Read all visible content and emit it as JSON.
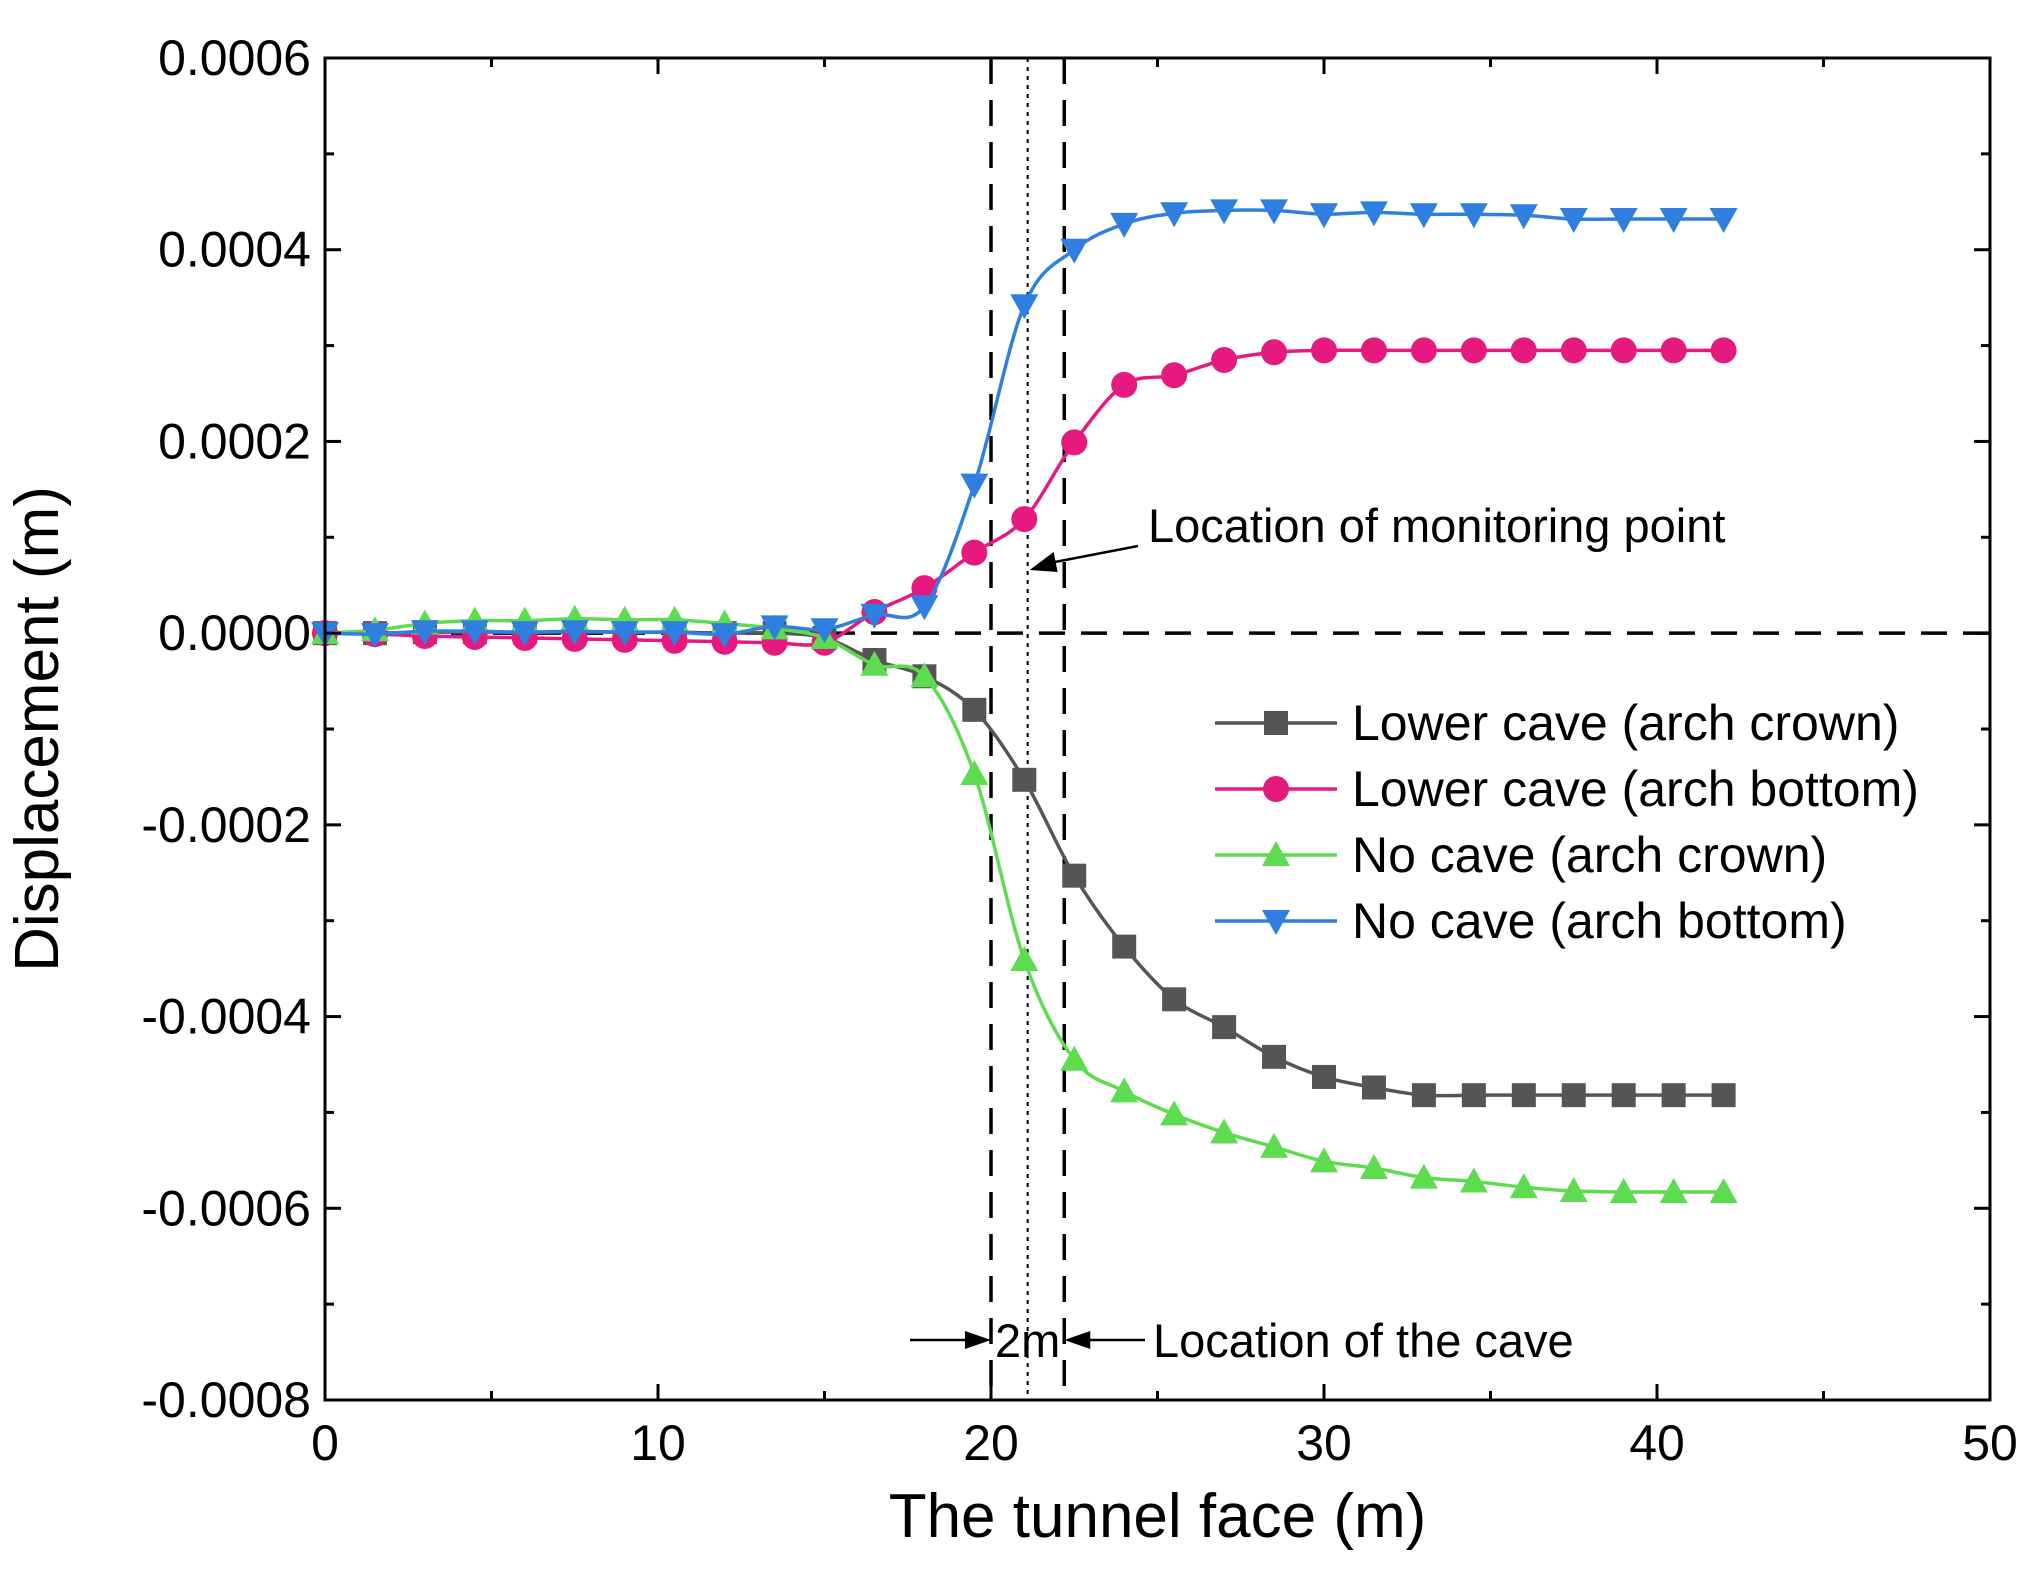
{
  "chart_data": {
    "type": "line",
    "title": "",
    "xlabel": "The tunnel face (m)",
    "ylabel": "Displacement (m)",
    "xlim": [
      0,
      50
    ],
    "ylim": [
      -0.0008,
      0.0006
    ],
    "xticks": [
      0,
      10,
      20,
      30,
      40,
      50
    ],
    "xtick_labels": [
      "0",
      "10",
      "20",
      "30",
      "40",
      "50"
    ],
    "yticks": [
      -0.0008,
      -0.0006,
      -0.0004,
      -0.0002,
      0.0,
      0.0002,
      0.0004,
      0.0006
    ],
    "ytick_labels": [
      "-0.0008",
      "-0.0006",
      "-0.0004",
      "-0.0002",
      "0.0000",
      "0.0002",
      "0.0004",
      "0.0006"
    ],
    "grid": false,
    "legend_position": "center-right",
    "x": [
      0,
      1.5,
      3,
      4.5,
      6,
      7.5,
      9,
      10.5,
      12,
      13.5,
      15,
      16.5,
      18,
      19.5,
      21,
      22.5,
      24,
      25.5,
      27,
      28.5,
      30,
      31.5,
      33,
      34.5,
      36,
      37.5,
      39,
      40.5,
      42
    ],
    "series": [
      {
        "name": "Lower cave (arch crown)",
        "color": "#555555",
        "marker": "square",
        "values": [
          0,
          0,
          1e-06,
          1e-06,
          1e-06,
          1e-06,
          1e-06,
          1e-06,
          0,
          0,
          -5e-06,
          -2.8e-05,
          -4.5e-05,
          -8e-05,
          -0.000153,
          -0.000253,
          -0.000327,
          -0.000382,
          -0.000411,
          -0.000442,
          -0.000463,
          -0.000474,
          -0.000482,
          -0.000482,
          -0.000482,
          -0.000482,
          -0.000482,
          -0.000482,
          -0.000482
        ]
      },
      {
        "name": "Lower cave (arch bottom)",
        "color": "#e6197e",
        "marker": "circle",
        "values": [
          0,
          -1e-06,
          -3e-06,
          -4e-06,
          -5e-06,
          -6e-06,
          -7e-06,
          -8e-06,
          -9e-06,
          -1e-05,
          -1e-05,
          2.2e-05,
          4.7e-05,
          8.4e-05,
          0.000119,
          0.000199,
          0.000259,
          0.000269,
          0.000285,
          0.000293,
          0.000295,
          0.000295,
          0.000295,
          0.000295,
          0.000295,
          0.000295,
          0.000295,
          0.000295,
          0.000295
        ]
      },
      {
        "name": "No cave (arch crown)",
        "color": "#5cdc4e",
        "marker": "triangle-up",
        "values": [
          0,
          3e-06,
          1e-05,
          1.3e-05,
          1.3e-05,
          1.5e-05,
          1.4e-05,
          1.4e-05,
          1e-05,
          5e-06,
          -5e-06,
          -3.3e-05,
          -4.5e-05,
          -0.000147,
          -0.000341,
          -0.000445,
          -0.000478,
          -0.000502,
          -0.000521,
          -0.000536,
          -0.000551,
          -0.000558,
          -0.000568,
          -0.000572,
          -0.000578,
          -0.000582,
          -0.000583,
          -0.000583,
          -0.000583
        ]
      },
      {
        "name": "No cave (arch bottom)",
        "color": "#2f7fe0",
        "marker": "triangle-down",
        "values": [
          0,
          -1e-06,
          2e-06,
          2e-06,
          1e-06,
          2e-06,
          1e-06,
          1e-06,
          -1e-06,
          7e-06,
          4e-06,
          1.9e-05,
          2.8e-05,
          0.000155,
          0.000342,
          0.0004,
          0.000427,
          0.000438,
          0.000441,
          0.000441,
          0.000437,
          0.000439,
          0.000437,
          0.000437,
          0.000436,
          0.000432,
          0.000432,
          0.000432,
          0.000432
        ]
      }
    ],
    "reference_lines": [
      {
        "type": "horizontal",
        "y": 0,
        "style": "dashed"
      },
      {
        "type": "vertical",
        "x": 20,
        "style": "dashed"
      },
      {
        "type": "vertical",
        "x": 21.1,
        "style": "dotted"
      },
      {
        "type": "vertical",
        "x": 22.2,
        "style": "dashed"
      }
    ],
    "annotations": [
      {
        "text": "Location of monitoring point",
        "x": 21.1,
        "y": 8e-05
      },
      {
        "text": "Location of the cave",
        "x": 22.2,
        "y": -0.00074
      },
      {
        "text": "2m",
        "x": 21.1,
        "y": -0.00074
      }
    ]
  }
}
